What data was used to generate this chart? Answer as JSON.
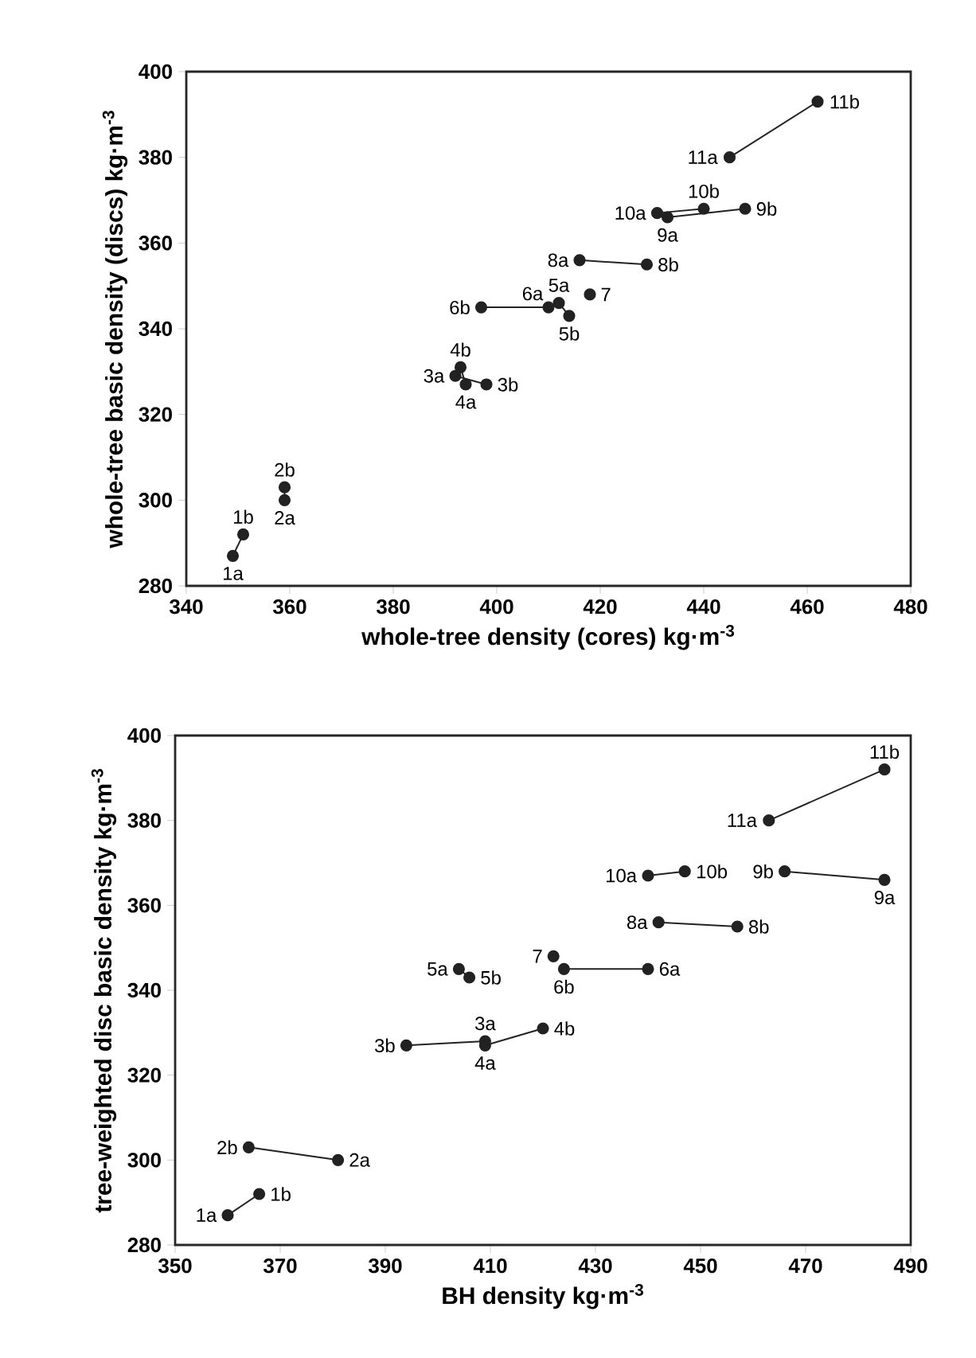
{
  "chart_data": [
    {
      "type": "scatter",
      "xlabel": "whole-tree density (cores)  kg·m$^{-3}$",
      "ylabel": "whole-tree basic density (discs)  kg·m$^{-3}$",
      "xlim": [
        340,
        480
      ],
      "ylim": [
        280,
        400
      ],
      "xticks": [
        340,
        360,
        380,
        400,
        420,
        440,
        460,
        480
      ],
      "yticks": [
        280,
        300,
        320,
        340,
        360,
        380,
        400
      ],
      "marker": "circle",
      "series": [
        {
          "type": "line",
          "color": "#222222",
          "x": [
            349,
            351
          ],
          "values": [
            287,
            292
          ]
        },
        {
          "type": "line",
          "color": "#222222",
          "x": [
            359,
            359
          ],
          "values": [
            300,
            303
          ]
        },
        {
          "type": "line",
          "color": "#222222",
          "x": [
            392,
            398
          ],
          "values": [
            329,
            327
          ]
        },
        {
          "type": "line",
          "color": "#222222",
          "x": [
            394,
            393
          ],
          "values": [
            327,
            331
          ]
        },
        {
          "type": "line",
          "color": "#222222",
          "x": [
            412,
            414
          ],
          "values": [
            346,
            343
          ]
        },
        {
          "type": "line",
          "color": "#222222",
          "x": [
            410,
            397
          ],
          "values": [
            345,
            345
          ]
        },
        {
          "color": "#222222",
          "x": [
            418
          ],
          "values": [
            348
          ]
        },
        {
          "type": "line",
          "color": "#222222",
          "x": [
            416,
            429
          ],
          "values": [
            356,
            355
          ]
        },
        {
          "type": "line",
          "color": "#222222",
          "x": [
            433,
            448
          ],
          "values": [
            366,
            368
          ]
        },
        {
          "type": "line",
          "color": "#222222",
          "x": [
            431,
            440
          ],
          "values": [
            367,
            368
          ]
        },
        {
          "type": "line",
          "color": "#222222",
          "x": [
            445,
            462
          ],
          "values": [
            380,
            393
          ]
        }
      ],
      "annotations": [
        {
          "text": "1a",
          "x": 349,
          "y": 287
        },
        {
          "text": "1b",
          "x": 351,
          "y": 292
        },
        {
          "text": "2a",
          "x": 359,
          "y": 300
        },
        {
          "text": "2b",
          "x": 359,
          "y": 303
        },
        {
          "text": "3a",
          "x": 392,
          "y": 329
        },
        {
          "text": "3b",
          "x": 398,
          "y": 327
        },
        {
          "text": "4a",
          "x": 394,
          "y": 327
        },
        {
          "text": "4b",
          "x": 393,
          "y": 331
        },
        {
          "text": "5a",
          "x": 412,
          "y": 346
        },
        {
          "text": "5b",
          "x": 414,
          "y": 343
        },
        {
          "text": "6a",
          "x": 410,
          "y": 345
        },
        {
          "text": "6b",
          "x": 397,
          "y": 345
        },
        {
          "text": "7",
          "x": 418,
          "y": 348
        },
        {
          "text": "8a",
          "x": 416,
          "y": 356
        },
        {
          "text": "8b",
          "x": 429,
          "y": 355
        },
        {
          "text": "9a",
          "x": 433,
          "y": 366
        },
        {
          "text": "9b",
          "x": 448,
          "y": 368
        },
        {
          "text": "10a",
          "x": 431,
          "y": 367
        },
        {
          "text": "10b",
          "x": 440,
          "y": 368
        },
        {
          "text": "11a",
          "x": 445,
          "y": 380
        },
        {
          "text": "11b",
          "x": 462,
          "y": 393
        }
      ]
    },
    {
      "type": "scatter",
      "xlabel": "BH density  kg·m$^{-3}$",
      "ylabel": "tree-weighted disc basic density  kg·m$^{-3}$",
      "xlim": [
        350,
        490
      ],
      "ylim": [
        280,
        400
      ],
      "xticks": [
        350,
        370,
        390,
        410,
        430,
        450,
        470,
        490
      ],
      "yticks": [
        280,
        300,
        320,
        340,
        360,
        380,
        400
      ],
      "marker": "circle",
      "series": [
        {
          "type": "line",
          "color": "#222222",
          "x": [
            360,
            366
          ],
          "values": [
            287,
            292
          ]
        },
        {
          "type": "line",
          "color": "#222222",
          "x": [
            381,
            364
          ],
          "values": [
            300,
            303
          ]
        },
        {
          "type": "line",
          "color": "#222222",
          "x": [
            409,
            394
          ],
          "values": [
            328,
            327
          ]
        },
        {
          "type": "line",
          "color": "#222222",
          "x": [
            409,
            420
          ],
          "values": [
            327,
            331
          ]
        },
        {
          "type": "line",
          "color": "#222222",
          "x": [
            404,
            406
          ],
          "values": [
            345,
            343
          ]
        },
        {
          "type": "line",
          "color": "#222222",
          "x": [
            440,
            424
          ],
          "values": [
            345,
            345
          ]
        },
        {
          "color": "#222222",
          "x": [
            422
          ],
          "values": [
            348
          ]
        },
        {
          "type": "line",
          "color": "#222222",
          "x": [
            442,
            457
          ],
          "values": [
            356,
            355
          ]
        },
        {
          "type": "line",
          "color": "#222222",
          "x": [
            485,
            466
          ],
          "values": [
            366,
            368
          ]
        },
        {
          "type": "line",
          "color": "#222222",
          "x": [
            440,
            447
          ],
          "values": [
            367,
            368
          ]
        },
        {
          "type": "line",
          "color": "#222222",
          "x": [
            463,
            485
          ],
          "values": [
            380,
            392
          ]
        }
      ],
      "annotations": [
        {
          "text": "1a",
          "x": 360,
          "y": 287
        },
        {
          "text": "1b",
          "x": 366,
          "y": 292
        },
        {
          "text": "2a",
          "x": 381,
          "y": 300
        },
        {
          "text": "2b",
          "x": 364,
          "y": 303
        },
        {
          "text": "3a",
          "x": 409,
          "y": 328
        },
        {
          "text": "3b",
          "x": 394,
          "y": 327
        },
        {
          "text": "4a",
          "x": 409,
          "y": 327
        },
        {
          "text": "4b",
          "x": 420,
          "y": 331
        },
        {
          "text": "5a",
          "x": 404,
          "y": 345
        },
        {
          "text": "5b",
          "x": 406,
          "y": 343
        },
        {
          "text": "6a",
          "x": 440,
          "y": 345
        },
        {
          "text": "6b",
          "x": 424,
          "y": 345
        },
        {
          "text": "7",
          "x": 422,
          "y": 348
        },
        {
          "text": "8a",
          "x": 442,
          "y": 356
        },
        {
          "text": "8b",
          "x": 457,
          "y": 355
        },
        {
          "text": "9a",
          "x": 485,
          "y": 366
        },
        {
          "text": "9b",
          "x": 466,
          "y": 368
        },
        {
          "text": "10a",
          "x": 440,
          "y": 367
        },
        {
          "text": "10b",
          "x": 447,
          "y": 368
        },
        {
          "text": "11a",
          "x": 463,
          "y": 380
        },
        {
          "text": "11b",
          "x": 485,
          "y": 392
        }
      ]
    }
  ]
}
